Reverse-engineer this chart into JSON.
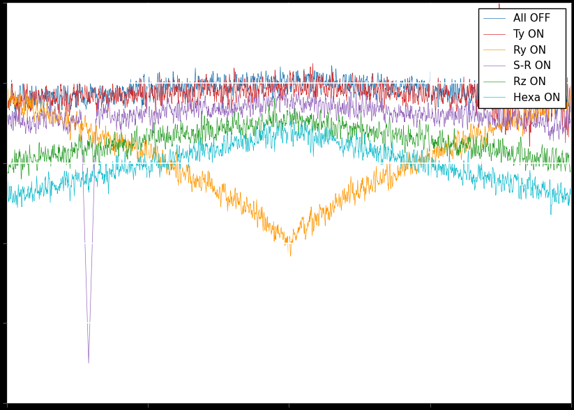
{
  "n_points": 2000,
  "seed": 123,
  "series": [
    {
      "label": "All OFF",
      "color": "#1f77b4"
    },
    {
      "label": "Ty ON",
      "color": "#d62728"
    },
    {
      "label": "Ry ON",
      "color": "#ff9900"
    },
    {
      "label": "S-R ON",
      "color": "#9467bd"
    },
    {
      "label": "Rz ON",
      "color": "#2ca02c"
    },
    {
      "label": "Hexa ON",
      "color": "#17becf"
    }
  ],
  "ylim": [
    -1.6,
    0.9
  ],
  "xlim": [
    0,
    1
  ],
  "figure_bg": "#000000",
  "axes_bg": "#ffffff",
  "linewidth": 0.5,
  "grid_color": "#cccccc",
  "legend_fontsize": 11
}
